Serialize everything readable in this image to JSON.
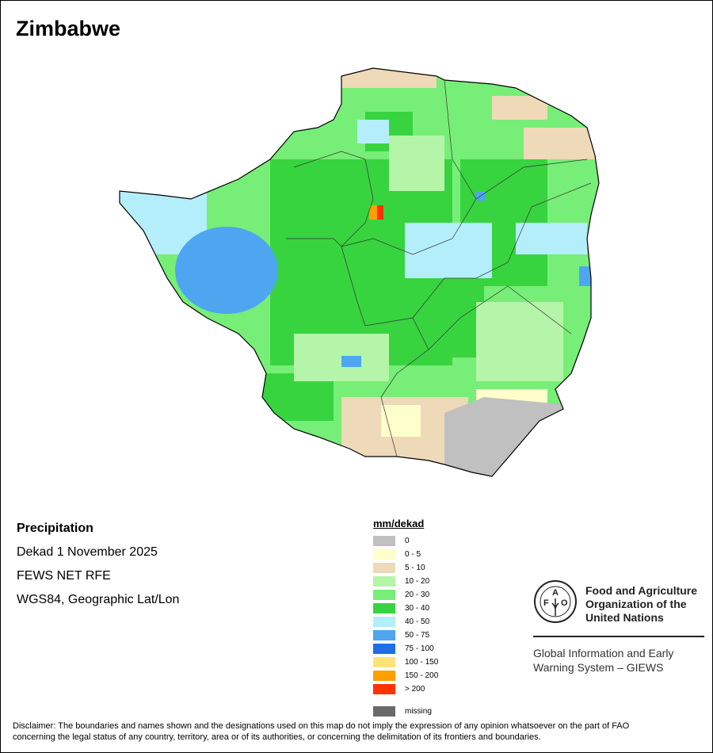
{
  "title": "Zimbabwe",
  "info": {
    "variable": "Precipitation",
    "period": "Dekad 1 November 2025",
    "source": "FEWS NET RFE",
    "projection": "WGS84, Geographic Lat/Lon"
  },
  "legend": {
    "title": "mm/dekad",
    "items": [
      {
        "label": "0",
        "color": "#c0c0c0"
      },
      {
        "label": "0 - 5",
        "color": "#ffffcc"
      },
      {
        "label": "5 - 10",
        "color": "#eed9b9"
      },
      {
        "label": "10 - 20",
        "color": "#b5f5a9"
      },
      {
        "label": "20 - 30",
        "color": "#77ee77"
      },
      {
        "label": "30 - 40",
        "color": "#37d43f"
      },
      {
        "label": "40 - 50",
        "color": "#b4eefa"
      },
      {
        "label": "50 - 75",
        "color": "#4ea6f0"
      },
      {
        "label": "75 - 100",
        "color": "#1e6ee8"
      },
      {
        "label": "100 - 150",
        "color": "#ffe27a"
      },
      {
        "label": "150 - 200",
        "color": "#ff9f00"
      },
      {
        "label": "> 200",
        "color": "#ff3300"
      }
    ],
    "missing": {
      "label": "missing",
      "color": "#6a6a6a"
    }
  },
  "logo": {
    "org_name": "Food and Agriculture Organization of the United Nations",
    "org_line1": "Food and Agriculture",
    "org_line2": "Organization of the",
    "org_line3": "United Nations",
    "emblem_text": "FAO FIAT PANIS",
    "system_line1": "Global Information and Early",
    "system_line2": "Warning System – GIEWS"
  },
  "disclaimer_line1": "Disclaimer: The boundaries and names shown and the designations used on this map do not imply the expression of any opinion whatsoever on the part of FAO",
  "disclaimer_line2": "concerning the legal status of any country, territory, area or of its authorities, or concerning the delimitation of its frontiers and boundaries."
}
